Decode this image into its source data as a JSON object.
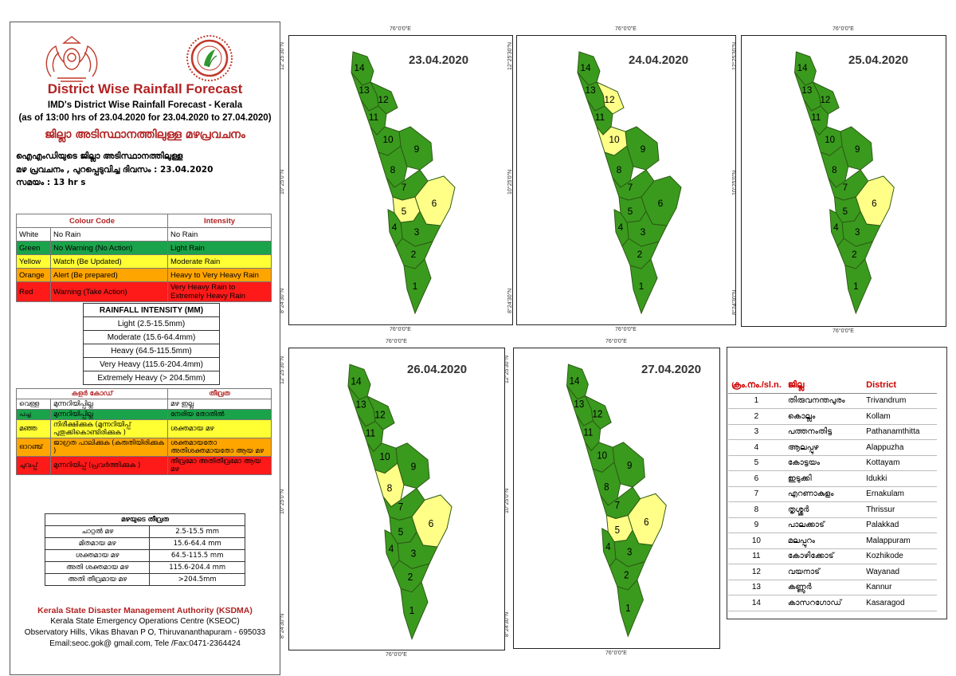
{
  "header": {
    "title": "District Wise Rainfall Forecast",
    "subtitle1": "IMD's District Wise Rainfall Forecast - Kerala",
    "subtitle2": "(as of 13:00 hrs of 23.04.2020  for 23.04.2020  to 27.04.2020)",
    "ml_title": "ജില്ലാ അടിസ്ഥാനത്തിലുള്ള മഴപ്രവചനം",
    "ml_line1": "ഐഎംഡിയുടെ ജില്ലാ      അടിസ്ഥാനത്തിലുള്ള",
    "ml_line2": "മഴ പ്രവചനം  , പുറപ്പെടുവിച്ച       ദിവസം : 23.04.2020",
    "ml_line3": "സമയം : 13   hr s"
  },
  "colour_code_table": {
    "headers": [
      "Colour Code",
      "Intensity"
    ],
    "rows": [
      {
        "color_name": "White",
        "meaning": "No Rain",
        "intensity": "No Rain",
        "bg": "#ffffff"
      },
      {
        "color_name": "Green",
        "meaning": "No Warning (No Action)",
        "intensity": "Light Rain",
        "bg": "#1aa34a"
      },
      {
        "color_name": "Yellow",
        "meaning": "Watch (Be Updated)",
        "intensity": "Moderate Rain",
        "bg": "#ffff33"
      },
      {
        "color_name": "Orange",
        "meaning": "Alert (Be prepared)",
        "intensity": "Heavy to Very Heavy Rain",
        "bg": "#ffa500"
      },
      {
        "color_name": "Red",
        "meaning": "Warning (Take Action)",
        "intensity": "Very Heavy Rain to Extremely Heavy Rain",
        "bg": "#ff1a1a"
      }
    ]
  },
  "rainfall_intensity_table": {
    "header": "RAINFALL INTENSITY (MM)",
    "rows": [
      "Light (2.5-15.5mm)",
      "Moderate (15.6-64.4mm)",
      "Heavy (64.5-115.5mm)",
      "Very Heavy (115.6-204.4mm)",
      "Extremely Heavy (> 204.5mm)"
    ]
  },
  "ml_colour_table": {
    "headers": [
      "കളർ കോഡ്",
      "തീവ്രത"
    ],
    "rows": [
      {
        "c1": "വെള്ള",
        "c2": "മുന്നറിയിപ്പില്ല",
        "c3": "മഴ ഇല്ല",
        "bg": "#ffffff"
      },
      {
        "c1": "പച്ച",
        "c2": "മുന്നറിയിപ്പില്ല",
        "c3": "നേരിയ തോതിൽ",
        "bg": "#1aa34a"
      },
      {
        "c1": "മഞ്ഞ",
        "c2": "നിരീക്ഷിക്കുക (മുന്നറിയിപ്പ് പുതുക്കികൊണ്ടിരിക്കുക )",
        "c3": "ശക്തമായ മഴ",
        "bg": "#ffff33"
      },
      {
        "c1": "ഓറഞ്ച്",
        "c2": "ജാഗ്രത പാലിക്കുക (കരുതിയിരിക്കുക )",
        "c3": "ശക്തമായതോ അതിശക്തമായതോ ആയ മഴ",
        "bg": "#ffa500"
      },
      {
        "c1": "ചുവപ്പ്",
        "c2": "മുന്നറിയിപ്പ് (പ്രവർത്തിക്കുക )",
        "c3": "തീവ്രമോ അതിതീവ്രമോ ആയ മഴ",
        "bg": "#ff1a1a"
      }
    ]
  },
  "ml_intensity_table": {
    "header": "മഴയുടെ തീവ്രത",
    "rows": [
      [
        "ചാറ്റൽ മഴ",
        "2.5-15.5 mm"
      ],
      [
        "മിതമായ മഴ",
        "15.6-64.4 mm"
      ],
      [
        "ശക്തമായ മഴ",
        "64.5-115.5 mm"
      ],
      [
        "അതി ശക്തമായ മഴ",
        "115.6-204.4 mm"
      ],
      [
        "അതി തീവ്രമായ മഴ",
        ">204.5mm"
      ]
    ]
  },
  "footer": {
    "org": "Kerala State Disaster Management Authority (KSDMA)",
    "line1": "Kerala State Emergency Operations Centre (KSEOC)",
    "line2": "Observatory Hills, Vikas Bhavan P O, Thiruvananthapuram - 695033",
    "line3": "Email:seoc.gok@ gmail.com, Tele /Fax:0471-2364424"
  },
  "colors": {
    "green": "#3a9a1e",
    "yellow": "#ffff88",
    "border": "#2d5a14"
  },
  "coords": {
    "lon": "76°0'0\"E",
    "lat_n": "12°25'30\"N",
    "lat_m": "10°25'0\"N",
    "lat_s": "8°24'30\"N"
  },
  "maps": [
    {
      "date": "23.04.2020",
      "yellow_districts": [
        5,
        6
      ]
    },
    {
      "date": "24.04.2020",
      "yellow_districts": [
        10,
        12
      ]
    },
    {
      "date": "25.04.2020",
      "yellow_districts": [
        6
      ]
    },
    {
      "date": "26.04.2020",
      "yellow_districts": [
        6,
        8
      ]
    },
    {
      "date": "27.04.2020",
      "yellow_districts": [
        5,
        6
      ]
    }
  ],
  "district_table": {
    "headers": [
      "ക്രം.നം./sl.n.",
      "ജില്ല",
      "District"
    ],
    "rows": [
      [
        "1",
        "തിരുവനന്തപുരം",
        "Trivandrum"
      ],
      [
        "2",
        "കൊല്ലം",
        "Kollam"
      ],
      [
        "3",
        "പത്തനംതിട്ട",
        "Pathanamthitta"
      ],
      [
        "4",
        "ആലപ്പുഴ",
        "Alappuzha"
      ],
      [
        "5",
        "കോട്ടയം",
        "Kottayam"
      ],
      [
        "6",
        "ഇടുക്കി",
        "Idukki"
      ],
      [
        "7",
        "എറണാകുളം",
        "Ernakulam"
      ],
      [
        "8",
        "തൃശ്ശൂർ",
        "Thrissur"
      ],
      [
        "9",
        "പാലക്കാട്",
        "Palakkad"
      ],
      [
        "10",
        "മലപ്പുറം",
        "Malappuram"
      ],
      [
        "11",
        "കോഴിക്കോട്",
        "Kozhikode"
      ],
      [
        "12",
        "വയനാട്",
        "Wayanad"
      ],
      [
        "13",
        "കണ്ണൂർ",
        "Kannur"
      ],
      [
        "14",
        "കാസറഗോഡ്",
        "Kasaragod"
      ]
    ]
  }
}
